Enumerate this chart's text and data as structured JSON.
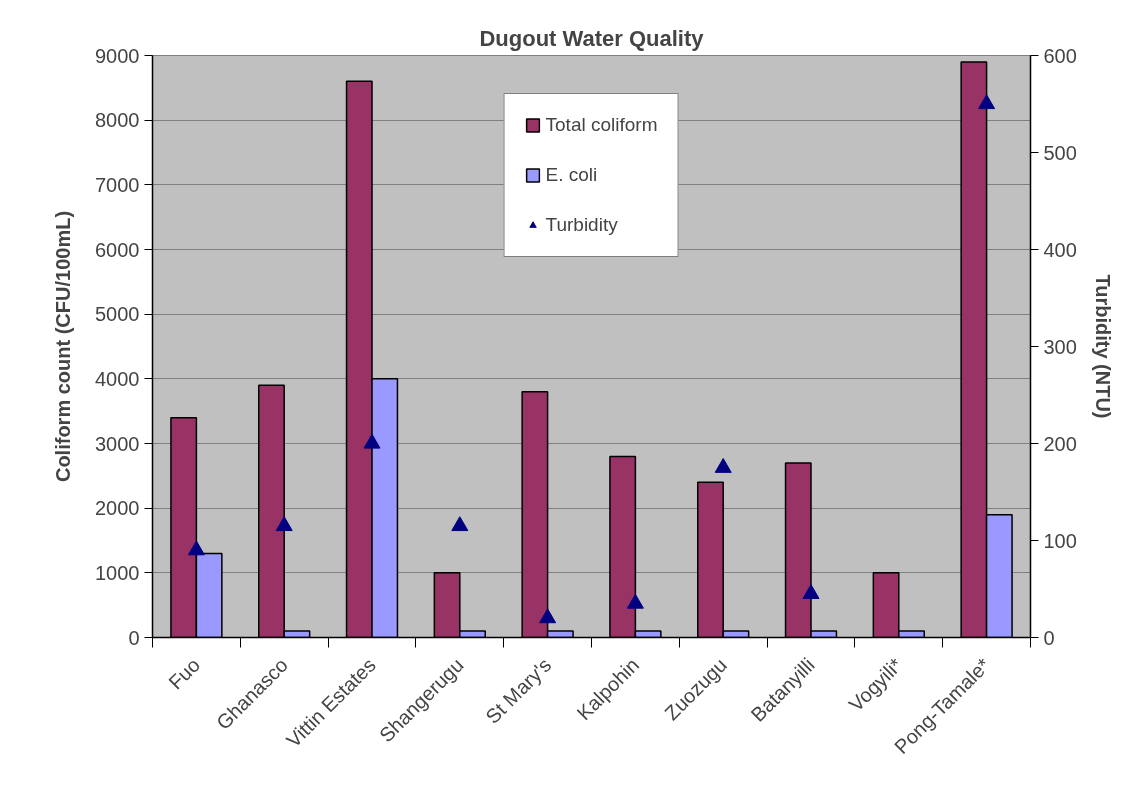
{
  "chart_data": {
    "type": "bar",
    "title": "Dugout Water Quality",
    "ylabel": "Coliform count (CFU/100mL)",
    "y2label": "Turbidity (NTU)",
    "categories": [
      "Fuo",
      "Ghanasco",
      "Vittin Estates",
      "Shangerugu",
      "St Mary's",
      "Kalpohin",
      "Zuozugu",
      "Batanyilli",
      "Vogyili*",
      "Pong-Tamale*"
    ],
    "series": [
      {
        "name": "Total coliform",
        "color": "#993366",
        "values": [
          3400,
          3900,
          8600,
          1000,
          3800,
          2800,
          2400,
          2700,
          1000,
          8900
        ]
      },
      {
        "name": "E. coli",
        "color": "#9999ff",
        "values": [
          1300,
          100,
          4000,
          100,
          100,
          100,
          100,
          100,
          100,
          1900
        ]
      },
      {
        "name": "Turbidity",
        "type": "scatter",
        "axis": "y2",
        "color": "#000080",
        "marker": "triangle",
        "values": [
          90,
          115,
          200,
          115,
          20,
          35,
          175,
          45,
          null,
          550
        ]
      }
    ],
    "ylim": [
      0,
      9000
    ],
    "yticks": [
      0,
      1000,
      2000,
      3000,
      4000,
      5000,
      6000,
      7000,
      8000,
      9000
    ],
    "y2lim": [
      0,
      600
    ],
    "y2ticks": [
      0,
      100,
      200,
      300,
      400,
      500,
      600
    ],
    "grid": "y",
    "legend": "top"
  }
}
